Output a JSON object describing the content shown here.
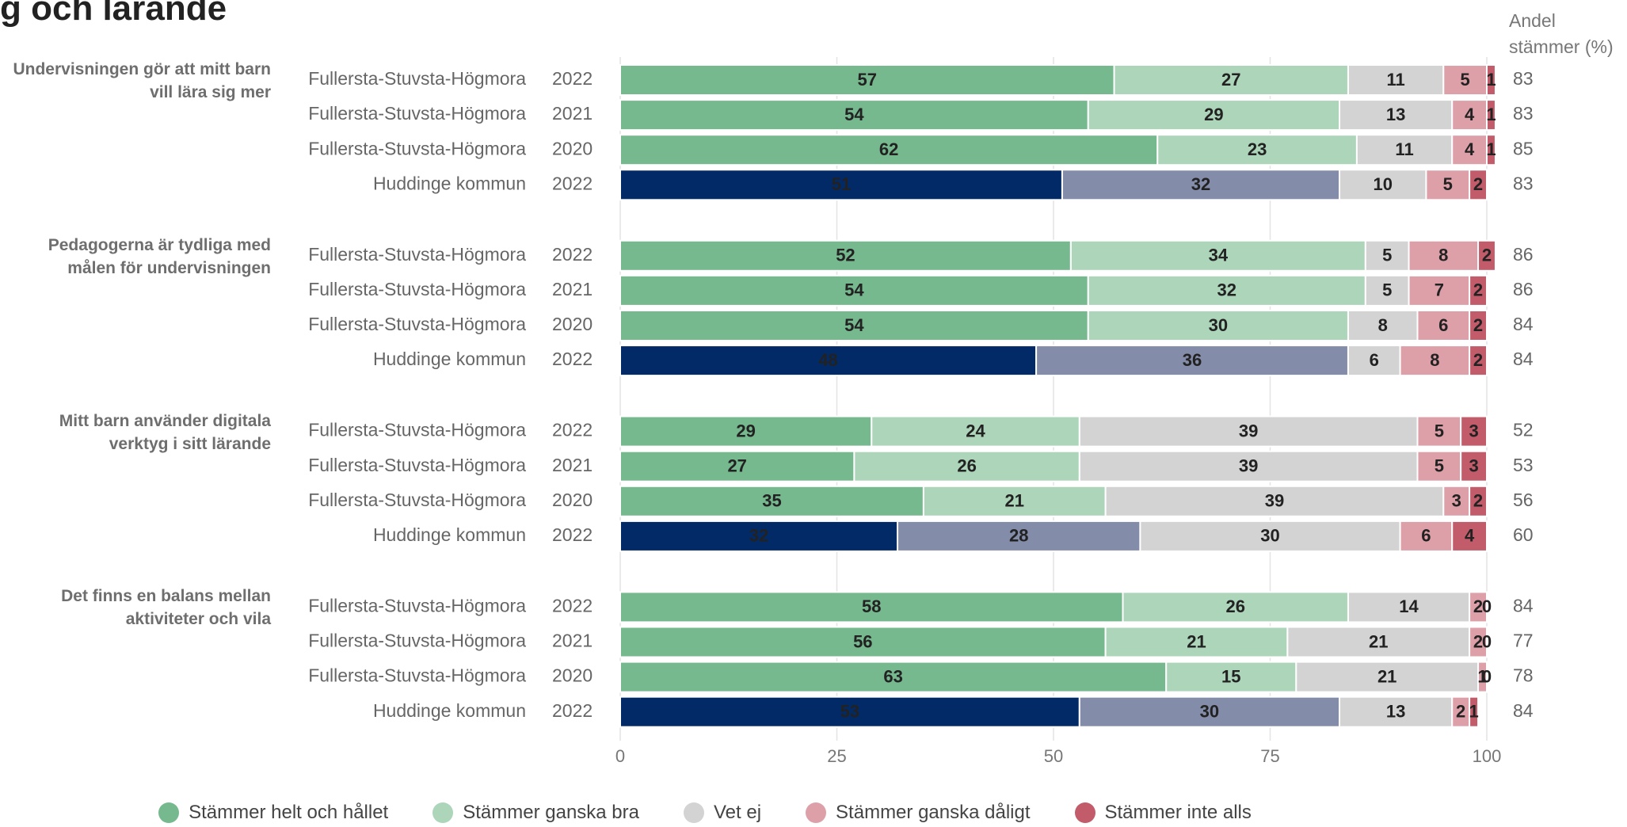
{
  "chart_data": {
    "type": "bar",
    "orientation": "horizontal",
    "stacked": true,
    "title": "g och lärande",
    "share_label": "Andel stämmer (%)",
    "xlim": [
      0,
      100
    ],
    "xticks": [
      0,
      25,
      50,
      75,
      100
    ],
    "grid": true,
    "legend": "bottom",
    "series": [
      {
        "name": "Stämmer helt och hållet",
        "color": "#76b98e",
        "comparison_color": "#022a66"
      },
      {
        "name": "Stämmer ganska bra",
        "color": "#acd5b9",
        "comparison_color": "#838ca8"
      },
      {
        "name": "Vet ej",
        "color": "#d3d3d3"
      },
      {
        "name": "Stämmer ganska dåligt",
        "color": "#dea0a8"
      },
      {
        "name": "Stämmer inte alls",
        "color": "#c25b6a"
      }
    ],
    "groups": [
      {
        "label": "Undervisningen gör att mitt barn vill lära sig mer",
        "rows": [
          {
            "entity": "Fullersta-Stuvsta-Högmora",
            "year": 2022,
            "share": 83,
            "values": [
              57,
              27,
              11,
              5,
              1
            ]
          },
          {
            "entity": "Fullersta-Stuvsta-Högmora",
            "year": 2021,
            "share": 83,
            "values": [
              54,
              29,
              13,
              4,
              1
            ]
          },
          {
            "entity": "Fullersta-Stuvsta-Högmora",
            "year": 2020,
            "share": 85,
            "values": [
              62,
              23,
              11,
              4,
              1
            ]
          },
          {
            "entity": "Huddinge kommun",
            "year": 2022,
            "share": 83,
            "comparison": true,
            "values": [
              51,
              32,
              10,
              5,
              2
            ]
          }
        ]
      },
      {
        "label": "Pedagogerna är tydliga med målen för undervisningen",
        "rows": [
          {
            "entity": "Fullersta-Stuvsta-Högmora",
            "year": 2022,
            "share": 86,
            "values": [
              52,
              34,
              5,
              8,
              2
            ]
          },
          {
            "entity": "Fullersta-Stuvsta-Högmora",
            "year": 2021,
            "share": 86,
            "values": [
              54,
              32,
              5,
              7,
              2
            ]
          },
          {
            "entity": "Fullersta-Stuvsta-Högmora",
            "year": 2020,
            "share": 84,
            "values": [
              54,
              30,
              8,
              6,
              2
            ]
          },
          {
            "entity": "Huddinge kommun",
            "year": 2022,
            "share": 84,
            "comparison": true,
            "values": [
              48,
              36,
              6,
              8,
              2
            ]
          }
        ]
      },
      {
        "label": "Mitt barn använder digitala verktyg i sitt lärande",
        "rows": [
          {
            "entity": "Fullersta-Stuvsta-Högmora",
            "year": 2022,
            "share": 52,
            "values": [
              29,
              24,
              39,
              5,
              3
            ]
          },
          {
            "entity": "Fullersta-Stuvsta-Högmora",
            "year": 2021,
            "share": 53,
            "values": [
              27,
              26,
              39,
              5,
              3
            ]
          },
          {
            "entity": "Fullersta-Stuvsta-Högmora",
            "year": 2020,
            "share": 56,
            "values": [
              35,
              21,
              39,
              3,
              2
            ]
          },
          {
            "entity": "Huddinge kommun",
            "year": 2022,
            "share": 60,
            "comparison": true,
            "values": [
              32,
              28,
              30,
              6,
              4
            ]
          }
        ]
      },
      {
        "label": "Det finns en balans mellan aktiviteter och vila",
        "rows": [
          {
            "entity": "Fullersta-Stuvsta-Högmora",
            "year": 2022,
            "share": 84,
            "values": [
              58,
              26,
              14,
              2,
              0
            ]
          },
          {
            "entity": "Fullersta-Stuvsta-Högmora",
            "year": 2021,
            "share": 77,
            "values": [
              56,
              21,
              21,
              2,
              0
            ]
          },
          {
            "entity": "Fullersta-Stuvsta-Högmora",
            "year": 2020,
            "share": 78,
            "values": [
              63,
              15,
              21,
              1,
              0
            ]
          },
          {
            "entity": "Huddinge kommun",
            "year": 2022,
            "share": 84,
            "comparison": true,
            "values": [
              53,
              30,
              13,
              2,
              1
            ]
          }
        ]
      }
    ]
  }
}
